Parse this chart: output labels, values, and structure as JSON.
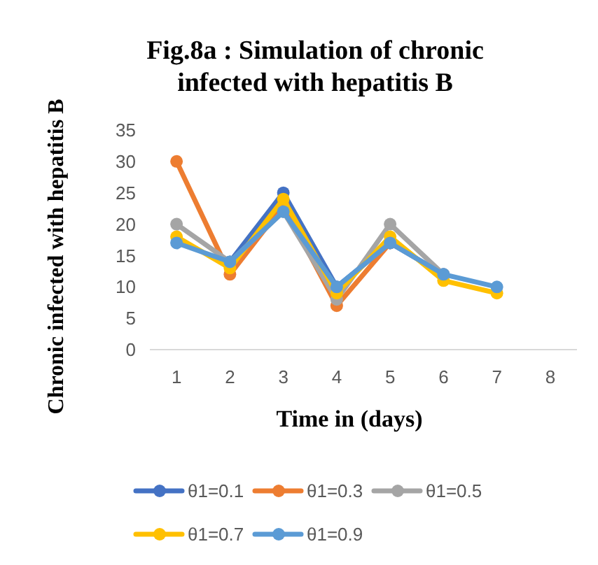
{
  "chart_data": {
    "type": "line",
    "title": "Fig.8a : Simulation of chronic infected with hepatitis B",
    "xlabel": "Time in (days)",
    "ylabel": "Chronic infected with hepatitis B",
    "categories": [
      "1",
      "2",
      "3",
      "4",
      "5",
      "6",
      "7",
      "8"
    ],
    "ylim": [
      0,
      35
    ],
    "yticks": [
      0,
      5,
      10,
      15,
      20,
      25,
      30,
      35
    ],
    "grid": false,
    "legend": "bottom",
    "marker": "circle",
    "series": [
      {
        "name": "θ1=0.1",
        "color": "#4472c4",
        "values": [
          null,
          14,
          25,
          10,
          17,
          12,
          null,
          null
        ]
      },
      {
        "name": "θ1=0.3",
        "color": "#ed7d31",
        "values": [
          30,
          12,
          23,
          7,
          17,
          null,
          null,
          null
        ]
      },
      {
        "name": "θ1=0.5",
        "color": "#a5a5a5",
        "values": [
          20,
          14,
          22,
          8,
          20,
          12,
          null,
          null
        ]
      },
      {
        "name": "θ1=0.7",
        "color": "#ffc000",
        "values": [
          18,
          13,
          24,
          9,
          18,
          11,
          9,
          null
        ]
      },
      {
        "name": "θ1=0.9",
        "color": "#5b9bd5",
        "values": [
          17,
          14,
          22,
          10,
          17,
          12,
          10,
          null
        ]
      }
    ]
  }
}
